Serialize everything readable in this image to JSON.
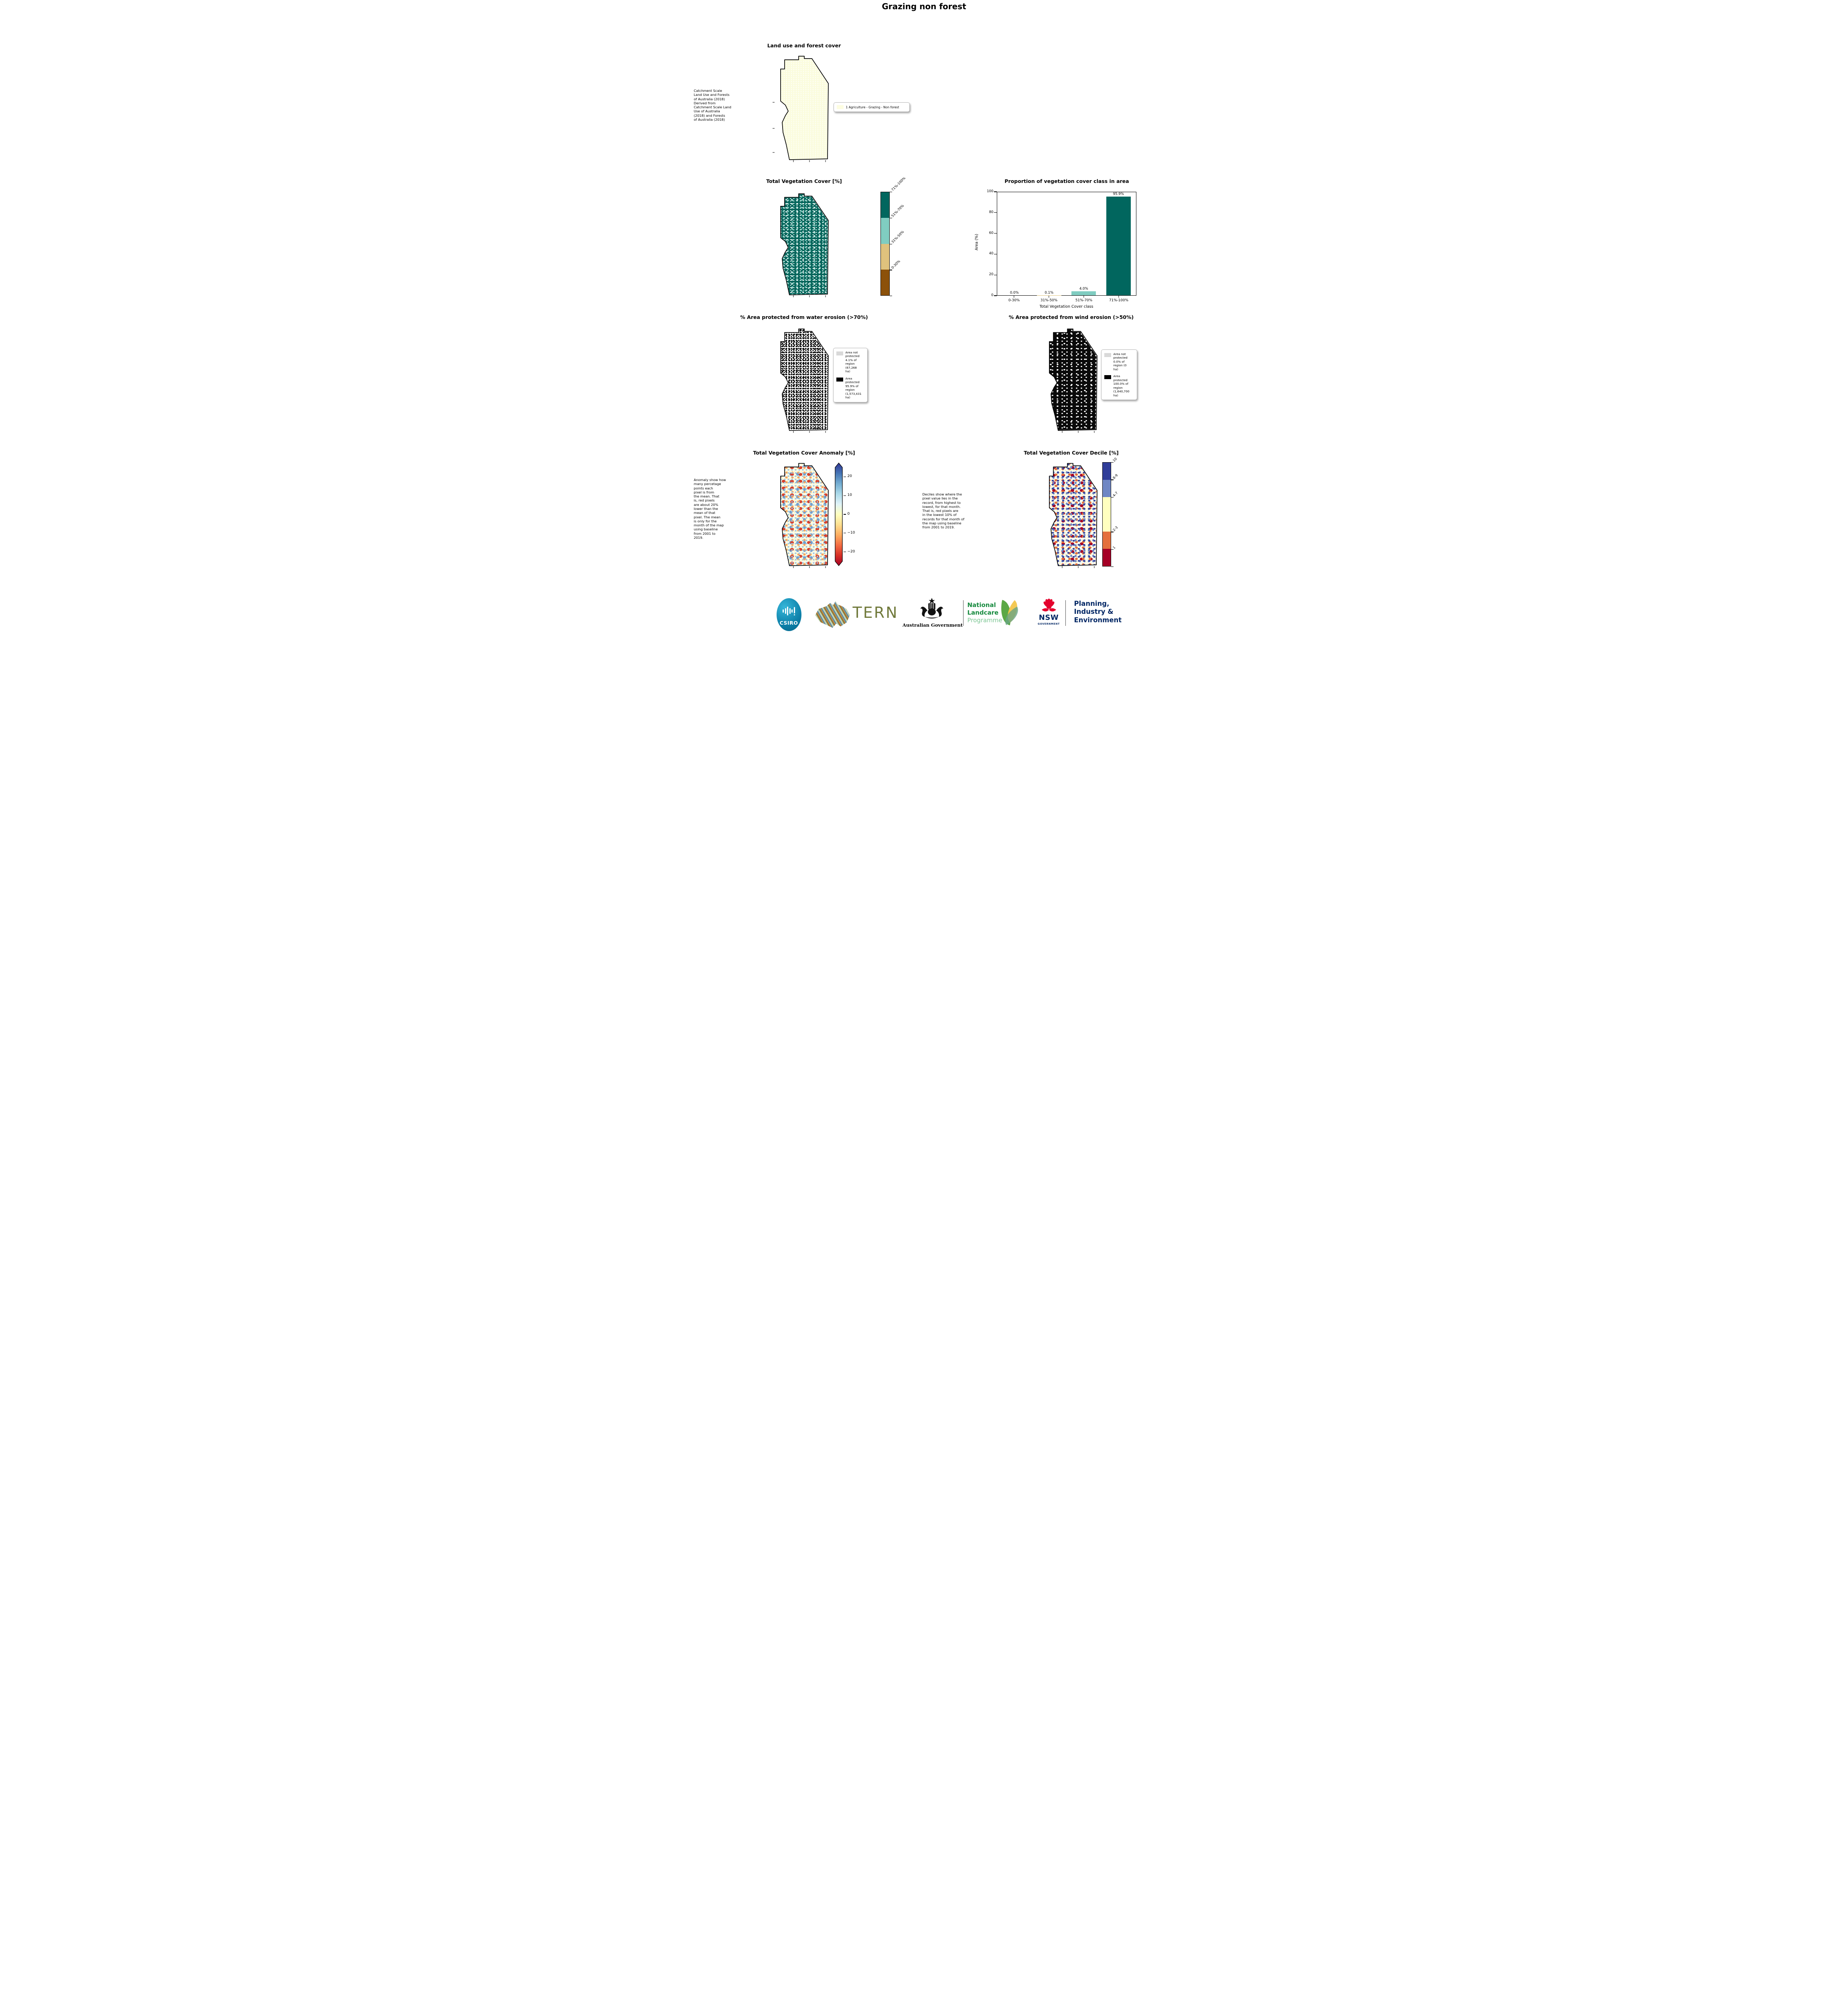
{
  "page": {
    "title": "Grazing non forest"
  },
  "landuse": {
    "title": "Land use and forest cover",
    "side_note": " Catchment Scale\nLand Use and Forests\nof Australia (2018)\nDerived from\nCatchment Scale Land\nUse of Australia\n(2018) and Forests\nof Australia (2018)",
    "legend": {
      "swatch_color": "#FDFDE1",
      "label": "1 Agriculture - Grazing - Non forest"
    }
  },
  "veg_cover": {
    "title": "Total Vegetation Cover [%]",
    "colorbar": [
      {
        "label": "71%-100%",
        "color": "#01665E"
      },
      {
        "label": "51%-70%",
        "color": "#80CDC1"
      },
      {
        "label": "31%-50%",
        "color": "#DFC27D"
      },
      {
        "label": "0-30%",
        "color": "#8C510A"
      }
    ]
  },
  "chart_data": {
    "type": "bar",
    "title": "Proportion of vegetation cover class in area",
    "categories": [
      "0-30%",
      "31%-50%",
      "51%-70%",
      "71%-100%"
    ],
    "values": [
      0.0,
      0.1,
      4.0,
      95.9
    ],
    "value_labels": [
      "0.0%",
      "0.1%",
      "4.0%",
      "95.9%"
    ],
    "bar_colors": [
      "#8C510A",
      "#DFC27D",
      "#80CDC1",
      "#01665E"
    ],
    "xlabel": "Total Vegetation Cover class",
    "ylabel": "Area (%)",
    "ylim": [
      0,
      100
    ],
    "yticks": [
      0,
      20,
      40,
      60,
      80,
      100
    ],
    "grid": false,
    "legend_position": "none"
  },
  "water_erosion": {
    "title": "% Area protected from water erosion (>70%)",
    "legend": [
      {
        "color": "#D9D9D9",
        "label": "Area not\nprotected\n4.1% of\nregion\n(67,268\nha)"
      },
      {
        "color": "#000000",
        "label": "Area\nprotected\n95.9% of\nregion\n(1,573,431\nha)"
      }
    ]
  },
  "wind_erosion": {
    "title": "% Area protected from wind erosion (>50%)",
    "legend": [
      {
        "color": "#D9D9D9",
        "label": "Area not\nprotected\n0.0% of\nregion (0\nha)"
      },
      {
        "color": "#000000",
        "label": "Area\nprotected\n100.0% of\nregion\n(1,640,700\nha)"
      }
    ]
  },
  "anomaly": {
    "title": "Total Vegetation Cover Anomaly [%]",
    "side_note": "Anomaly show how\nmany percetage\npoints each\npixel is from\nthe mean. That\nis, red pixels\nare about 20%\nlower than the\nmean of that\npixel. The mean\nis only for the\nmonth of the map\nusing baseline\nfrom 2001 to\n2019.",
    "gradient_top_to_bottom": [
      "#313695",
      "#4575B4",
      "#74ADD1",
      "#ABD9E9",
      "#E0F3F8",
      "#FFFFBF",
      "#FEE090",
      "#FDAE61",
      "#F46D43",
      "#D73027",
      "#A50026"
    ],
    "colorbar_ticks": [
      {
        "label": "20",
        "pos": 0.1
      },
      {
        "label": "10",
        "pos": 0.3
      },
      {
        "label": "0",
        "pos": 0.5
      },
      {
        "label": "−10",
        "pos": 0.7
      },
      {
        "label": "−20",
        "pos": 0.9
      }
    ]
  },
  "decile": {
    "title": "Total Vegetation Cover Decile [%]",
    "side_note": "Deciles show where the\npixel value lies in the\nrecord, from highest to\nlowest, for that month.\nThat is, red pixels are\nin the lowest 10% of\nrecords for that month of\nthe map using baseline\nfrom 2001 to 2019.",
    "colorbar": [
      {
        "label": "10",
        "color": "#303D99",
        "span": 1
      },
      {
        "label": "8-9",
        "color": "#6F87C4",
        "span": 1
      },
      {
        "label": "4-7",
        "color": "#FFFFBF",
        "span": 2
      },
      {
        "label": "2-3",
        "color": "#E4703D",
        "span": 1
      },
      {
        "label": "1",
        "color": "#A50026",
        "span": 1
      }
    ]
  },
  "footer": {
    "csiro_label": "CSIRO",
    "tern_label": "TERN",
    "aus_gov_label": "Australian Government",
    "landcare": {
      "line1": "National",
      "line2": "Landcare",
      "line3": "Programme"
    },
    "nsw_label": "NSW",
    "nsw_sub_label": "GOVERNMENT",
    "planning_label": "Planning,\nIndustry &\nEnvironment",
    "brand_colors": {
      "csiro_teal": "#0C7FA8",
      "tern_olive": "#717A3C",
      "landcare_green": "#168A3E",
      "landcare_light_green": "#7CC693",
      "nsw_red": "#E4012D",
      "nsw_navy": "#002664"
    }
  }
}
